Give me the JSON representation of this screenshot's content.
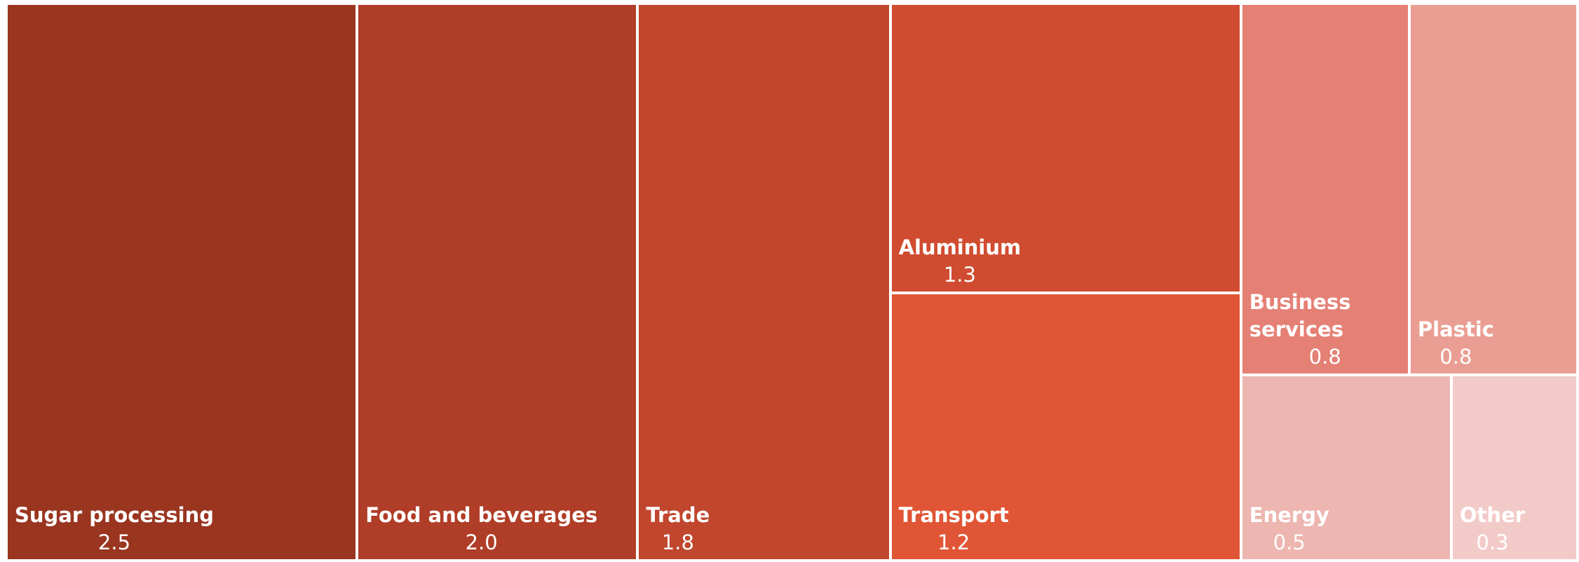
{
  "chart_data": {
    "type": "treemap",
    "categories": [
      "Sugar processing",
      "Food and beverages",
      "Trade",
      "Aluminium",
      "Transport",
      "Business services",
      "Plastic",
      "Energy",
      "Other"
    ],
    "values": [
      2.5,
      2.0,
      1.8,
      1.3,
      1.2,
      0.8,
      0.8,
      0.5,
      0.3
    ],
    "value_labels": [
      "2.5",
      "2.0",
      "1.8",
      "1.3",
      "1.2",
      "0.8",
      "0.8",
      "0.5",
      "0.3"
    ],
    "colors": [
      "#9a3520",
      "#b03d27",
      "#c0462d",
      "#d04c30",
      "#e05535",
      "#e58075",
      "#ea9e93",
      "#edb6b0",
      "#f2cbc9"
    ]
  }
}
